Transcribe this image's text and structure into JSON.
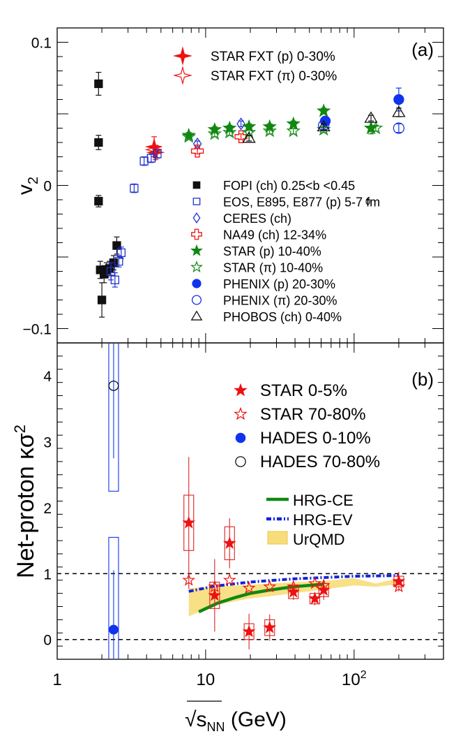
{
  "figure": {
    "xaxis": {
      "label_prefix": "√",
      "label_var": "s",
      "label_sub": "NN",
      "label_unit": " (GeV)",
      "scale": "log",
      "xlim": [
        1,
        400
      ],
      "major_ticks": [
        {
          "value": 1,
          "label": "1",
          "sup": ""
        },
        {
          "value": 10,
          "label": "10",
          "sup": ""
        },
        {
          "value": 100,
          "label": "10",
          "sup": "2"
        }
      ]
    }
  },
  "chart_data": [
    {
      "id": "panel-a",
      "type": "scatter",
      "panel_label": "(a)",
      "ylabel_main": "v",
      "ylabel_sub": "2",
      "ylim": [
        -0.11,
        0.11
      ],
      "yticks": [
        {
          "value": 0.1,
          "label": "0.1"
        },
        {
          "value": 0,
          "label": "0"
        },
        {
          "value": -0.1,
          "label": "−0.1"
        }
      ],
      "series": [
        {
          "name": "STAR FXT (p) 0-30%",
          "marker": "star4",
          "color": "#ee1111",
          "filled": true,
          "points": [
            {
              "x": 4.5,
              "y": 0.027,
              "err": 0.007
            },
            {
              "x": 4.6,
              "y": 0.023,
              "err": 0.005
            }
          ]
        },
        {
          "name": "STAR FXT (π) 0-30%",
          "marker": "star4",
          "color": "#ee1111",
          "filled": false,
          "points": [
            {
              "x": 4.5,
              "y": 0.025,
              "err": 0.002
            }
          ]
        },
        {
          "name": "FOPI (ch)  0.25<b  <0.45",
          "marker": "square",
          "color": "#111111",
          "filled": true,
          "points": [
            {
              "x": 1.9,
              "y": 0.071,
              "err": 0.008
            },
            {
              "x": 1.9,
              "y": 0.03,
              "err": 0.005
            },
            {
              "x": 1.9,
              "y": -0.011,
              "err": 0.004
            },
            {
              "x": 1.95,
              "y": -0.059,
              "err": 0.006
            },
            {
              "x": 2.0,
              "y": -0.08,
              "err": 0.012
            },
            {
              "x": 2.07,
              "y": -0.062,
              "err": 0.006
            },
            {
              "x": 2.15,
              "y": -0.059,
              "err": 0.005
            },
            {
              "x": 2.25,
              "y": -0.058,
              "err": 0.005
            },
            {
              "x": 2.4,
              "y": -0.054,
              "err": 0.005
            },
            {
              "x": 2.52,
              "y": -0.042,
              "err": 0.006
            }
          ]
        },
        {
          "name": "EOS, E895, E877 (p)  5-7 fm",
          "marker": "square",
          "color": "#2233cc",
          "filled": false,
          "points": [
            {
              "x": 2.3,
              "y": -0.06,
              "err": 0.006
            },
            {
              "x": 2.45,
              "y": -0.066,
              "err": 0.005
            },
            {
              "x": 2.6,
              "y": -0.053,
              "err": 0.004
            },
            {
              "x": 2.7,
              "y": -0.047,
              "err": 0.004
            },
            {
              "x": 3.3,
              "y": -0.002,
              "err": 0.003
            },
            {
              "x": 3.85,
              "y": 0.017,
              "err": 0.003
            },
            {
              "x": 4.3,
              "y": 0.019,
              "err": 0.003
            },
            {
              "x": 4.72,
              "y": 0.022,
              "err": 0.003
            }
          ]
        },
        {
          "name": "CERES (ch)",
          "marker": "diamond",
          "color": "#2233cc",
          "filled": false,
          "points": [
            {
              "x": 8.8,
              "y": 0.029,
              "err": 0.002
            },
            {
              "x": 17.3,
              "y": 0.043,
              "err": 0.002
            }
          ]
        },
        {
          "name": "NA49 (ch)  12-34%",
          "marker": "cross",
          "color": "#ee1111",
          "filled": false,
          "points": [
            {
              "x": 8.8,
              "y": 0.024,
              "err": 0.002
            },
            {
              "x": 17.3,
              "y": 0.034,
              "err": 0.002
            }
          ]
        },
        {
          "name": "STAR (p)  10-40%",
          "marker": "star5",
          "color": "#118811",
          "filled": true,
          "points": [
            {
              "x": 7.7,
              "y": 0.035,
              "err": 0.002
            },
            {
              "x": 11.5,
              "y": 0.039,
              "err": 0.002
            },
            {
              "x": 14.5,
              "y": 0.04,
              "err": 0.002
            },
            {
              "x": 19.6,
              "y": 0.041,
              "err": 0.002
            },
            {
              "x": 27,
              "y": 0.041,
              "err": 0.002
            },
            {
              "x": 39,
              "y": 0.043,
              "err": 0.002
            },
            {
              "x": 62.4,
              "y": 0.052,
              "err": 0.002
            },
            {
              "x": 130,
              "y": 0.04,
              "err": 0.004
            }
          ]
        },
        {
          "name": "STAR (π)  10-40%",
          "marker": "star5",
          "color": "#118811",
          "filled": false,
          "points": [
            {
              "x": 7.7,
              "y": 0.034,
              "err": 0.002
            },
            {
              "x": 11.5,
              "y": 0.036,
              "err": 0.002
            },
            {
              "x": 14.5,
              "y": 0.037,
              "err": 0.002
            },
            {
              "x": 19.6,
              "y": 0.037,
              "err": 0.002
            },
            {
              "x": 27,
              "y": 0.038,
              "err": 0.002
            },
            {
              "x": 39,
              "y": 0.038,
              "err": 0.002
            },
            {
              "x": 62.4,
              "y": 0.039,
              "err": 0.002
            },
            {
              "x": 140,
              "y": 0.04,
              "err": 0.002
            }
          ]
        },
        {
          "name": "PHENIX (p) 20-30%",
          "marker": "circle",
          "color": "#1133ee",
          "filled": true,
          "points": [
            {
              "x": 64,
              "y": 0.045,
              "err": 0.002
            },
            {
              "x": 200,
              "y": 0.06,
              "err": 0.008
            }
          ]
        },
        {
          "name": "PHENIX (π) 20-30%",
          "marker": "circle",
          "color": "#1133ee",
          "filled": false,
          "points": [
            {
              "x": 62.4,
              "y": 0.042,
              "err": 0.002
            },
            {
              "x": 200,
              "y": 0.04,
              "err": 0.003
            }
          ]
        },
        {
          "name": "PHOBOS (ch) 0-40%",
          "marker": "triangle",
          "color": "#111111",
          "filled": false,
          "points": [
            {
              "x": 19.6,
              "y": 0.033,
              "err": 0.002
            },
            {
              "x": 62.4,
              "y": 0.041,
              "err": 0.002
            },
            {
              "x": 130,
              "y": 0.047,
              "err": 0.002
            },
            {
              "x": 200,
              "y": 0.051,
              "err": 0.003
            }
          ]
        }
      ],
      "legend_top": [
        "STAR FXT (p) 0-30%",
        "STAR FXT (π) 0-30%"
      ],
      "legend_main": [
        "FOPI (ch)  0.25<b  <0.45",
        "EOS, E895, E877 (p)  5-7 fm",
        "CERES (ch)",
        "NA49 (ch)  12-34%",
        "STAR (p)  10-40%",
        "STAR (π)  10-40%",
        "PHENIX (p) 20-30%",
        "PHENIX (π) 20-30%",
        "PHOBOS (ch) 0-40%"
      ],
      "annotation": {
        "text": "0",
        "note": "small subscript over legend"
      }
    },
    {
      "id": "panel-b",
      "type": "scatter",
      "panel_label": "(b)",
      "ylabel_main": "Net-proton κσ",
      "ylabel_sup": "2",
      "ylim": [
        -0.3,
        4.5
      ],
      "yticks": [
        {
          "value": 0,
          "label": "0"
        },
        {
          "value": 1,
          "label": "1"
        },
        {
          "value": 2,
          "label": "2"
        },
        {
          "value": 3,
          "label": "3"
        },
        {
          "value": 4,
          "label": "4"
        }
      ],
      "reference_lines": [
        0,
        1
      ],
      "series": [
        {
          "name": "STAR 0-5%",
          "marker": "star5",
          "color": "#ee1111",
          "filled": true,
          "points": [
            {
              "x": 7.7,
              "y": 1.77,
              "stat": 1.0,
              "sys": 0.42
            },
            {
              "x": 11.5,
              "y": 0.67,
              "stat": 0.55,
              "sys": 0.2
            },
            {
              "x": 14.5,
              "y": 1.46,
              "stat": 0.38,
              "sys": 0.25
            },
            {
              "x": 19.6,
              "y": 0.12,
              "stat": 0.27,
              "sys": 0.12
            },
            {
              "x": 27,
              "y": 0.18,
              "stat": 0.2,
              "sys": 0.12
            },
            {
              "x": 39,
              "y": 0.72,
              "stat": 0.12,
              "sys": 0.1
            },
            {
              "x": 54.4,
              "y": 0.62,
              "stat": 0.1,
              "sys": 0.08
            },
            {
              "x": 62.4,
              "y": 0.75,
              "stat": 0.15,
              "sys": 0.1
            },
            {
              "x": 200,
              "y": 0.88,
              "stat": 0.15,
              "sys": 0.08
            }
          ]
        },
        {
          "name": "STAR 70-80%",
          "marker": "star5",
          "color": "#ee1111",
          "filled": false,
          "points": [
            {
              "x": 7.7,
              "y": 0.9,
              "stat": 0.03,
              "sys": 0.0
            },
            {
              "x": 11.5,
              "y": 0.8,
              "stat": 0.03,
              "sys": 0.0
            },
            {
              "x": 14.5,
              "y": 0.9,
              "stat": 0.03,
              "sys": 0.0
            },
            {
              "x": 19.6,
              "y": 0.78,
              "stat": 0.03,
              "sys": 0.0
            },
            {
              "x": 27,
              "y": 0.8,
              "stat": 0.03,
              "sys": 0.0
            },
            {
              "x": 39,
              "y": 0.8,
              "stat": 0.03,
              "sys": 0.0
            },
            {
              "x": 54.4,
              "y": 0.85,
              "stat": 0.03,
              "sys": 0.0
            },
            {
              "x": 62.4,
              "y": 0.82,
              "stat": 0.03,
              "sys": 0.0
            },
            {
              "x": 200,
              "y": 0.8,
              "stat": 0.03,
              "sys": 0.0
            }
          ]
        },
        {
          "name": "HADES 0-10%",
          "marker": "circle",
          "color": "#1133ee",
          "filled": true,
          "points": [
            {
              "x": 2.4,
              "y": 0.15,
              "stat": 0.9,
              "sys": 1.4
            }
          ]
        },
        {
          "name": "HADES 70-80%",
          "marker": "circle",
          "color": "#111111",
          "filled": false,
          "points": [
            {
              "x": 2.4,
              "y": 3.85,
              "stat": 1.1,
              "sys": 1.6
            }
          ]
        }
      ],
      "models": [
        {
          "name": "HRG-CE",
          "style": "solid",
          "color": "#118811",
          "points": [
            {
              "x": 9,
              "y": 0.42
            },
            {
              "x": 12,
              "y": 0.55
            },
            {
              "x": 16,
              "y": 0.64
            },
            {
              "x": 20,
              "y": 0.7
            },
            {
              "x": 27,
              "y": 0.75
            },
            {
              "x": 39,
              "y": 0.8
            },
            {
              "x": 62.4,
              "y": 0.84
            }
          ]
        },
        {
          "name": "HRG-EV",
          "style": "dashdot",
          "color": "#1122dd",
          "points": [
            {
              "x": 7.7,
              "y": 0.73
            },
            {
              "x": 11.5,
              "y": 0.81
            },
            {
              "x": 19.6,
              "y": 0.87
            },
            {
              "x": 39,
              "y": 0.92
            },
            {
              "x": 62.4,
              "y": 0.94
            },
            {
              "x": 100,
              "y": 0.96
            },
            {
              "x": 200,
              "y": 0.97
            }
          ]
        },
        {
          "name": "UrQMD",
          "style": "band",
          "color": "#f7dd7a",
          "upper": [
            {
              "x": 7.7,
              "y": 0.78
            },
            {
              "x": 11.5,
              "y": 0.8
            },
            {
              "x": 19.6,
              "y": 0.83
            },
            {
              "x": 39,
              "y": 0.87
            },
            {
              "x": 62.4,
              "y": 0.89
            },
            {
              "x": 100,
              "y": 0.93
            },
            {
              "x": 140,
              "y": 0.85
            },
            {
              "x": 200,
              "y": 0.93
            }
          ],
          "lower": [
            {
              "x": 7.7,
              "y": 0.35
            },
            {
              "x": 11.5,
              "y": 0.52
            },
            {
              "x": 19.6,
              "y": 0.62
            },
            {
              "x": 39,
              "y": 0.7
            },
            {
              "x": 62.4,
              "y": 0.76
            },
            {
              "x": 100,
              "y": 0.82
            },
            {
              "x": 140,
              "y": 0.8
            },
            {
              "x": 200,
              "y": 0.84
            }
          ]
        }
      ],
      "legend": [
        "STAR 0-5%",
        "STAR 70-80%",
        "HADES 0-10%",
        "HADES 70-80%"
      ],
      "legend_models": [
        "HRG-CE",
        "HRG-EV",
        "UrQMD"
      ]
    }
  ]
}
